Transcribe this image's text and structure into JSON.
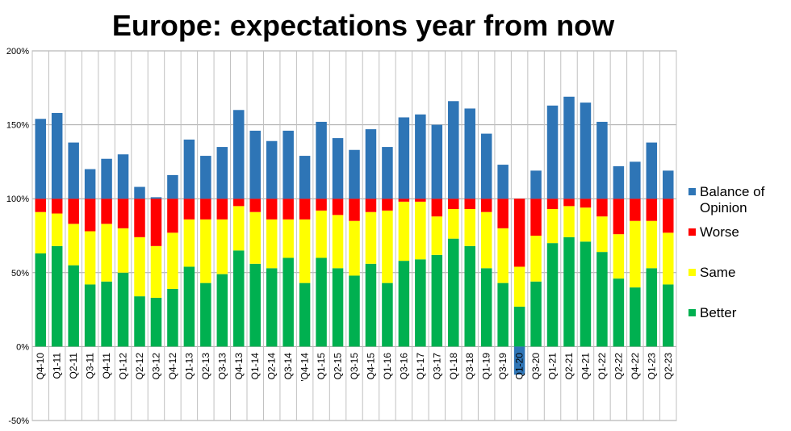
{
  "chart_data": {
    "type": "bar",
    "title": "Europe: expectations year from now",
    "xlabel": "",
    "ylabel": "",
    "ylim": [
      -50,
      200
    ],
    "y_ticks": [
      "-50%",
      "0%",
      "50%",
      "100%",
      "150%",
      "200%"
    ],
    "grid": true,
    "legend_position": "right",
    "categories": [
      "Q4-10",
      "Q1-11",
      "Q2-11",
      "Q3-11",
      "Q4-11",
      "Q1-12",
      "Q2-12",
      "Q3-12",
      "Q4-12",
      "Q1-13",
      "Q2-13",
      "Q3-13",
      "Q4-13",
      "Q1-14",
      "Q2-14",
      "Q3-14",
      "'Q4-14",
      "Q1-15",
      "Q2-15",
      "Q3-15",
      "Q4-15",
      "Q1-16",
      "Q3-16",
      "Q1-17",
      "Q3-17",
      "Q1-18",
      "Q3-18",
      "Q1-19",
      "Q3-19",
      "Q1-20",
      "Q3-20",
      "Q1-21",
      "Q2-21",
      "Q4-21",
      "Q1-22",
      "Q2-22",
      "Q4-22",
      "Q1-23",
      "Q2-23"
    ],
    "series": [
      {
        "name": "Better",
        "color": "#00b050",
        "values": [
          63,
          68,
          55,
          42,
          44,
          50,
          34,
          33,
          39,
          54,
          43,
          49,
          65,
          56,
          53,
          60,
          43,
          60,
          53,
          48,
          56,
          43,
          58,
          59,
          62,
          73,
          68,
          53,
          43,
          27,
          44,
          70,
          74,
          71,
          64,
          46,
          40,
          53,
          42
        ]
      },
      {
        "name": "Same",
        "color": "#ffff00",
        "values": [
          28,
          22,
          28,
          36,
          39,
          30,
          40,
          35,
          38,
          32,
          43,
          37,
          30,
          35,
          33,
          26,
          43,
          32,
          36,
          37,
          35,
          49,
          40,
          39,
          26,
          20,
          25,
          38,
          37,
          27,
          31,
          23,
          21,
          23,
          24,
          30,
          45,
          32,
          35
        ]
      },
      {
        "name": "Worse",
        "color": "#ff0000",
        "values": [
          9,
          10,
          17,
          22,
          17,
          20,
          26,
          32,
          23,
          14,
          14,
          14,
          5,
          9,
          14,
          14,
          14,
          8,
          11,
          15,
          9,
          8,
          2,
          2,
          12,
          7,
          7,
          9,
          20,
          46,
          25,
          7,
          5,
          6,
          12,
          24,
          15,
          15,
          23
        ]
      },
      {
        "name": "Balance of Opinion",
        "color": "#2e75b6",
        "values": [
          54,
          58,
          38,
          20,
          27,
          30,
          8,
          1,
          16,
          40,
          29,
          35,
          60,
          46,
          39,
          46,
          29,
          52,
          41,
          33,
          47,
          35,
          55,
          57,
          50,
          66,
          61,
          44,
          23,
          -19,
          19,
          63,
          69,
          65,
          52,
          22,
          25,
          38,
          19
        ]
      }
    ]
  }
}
